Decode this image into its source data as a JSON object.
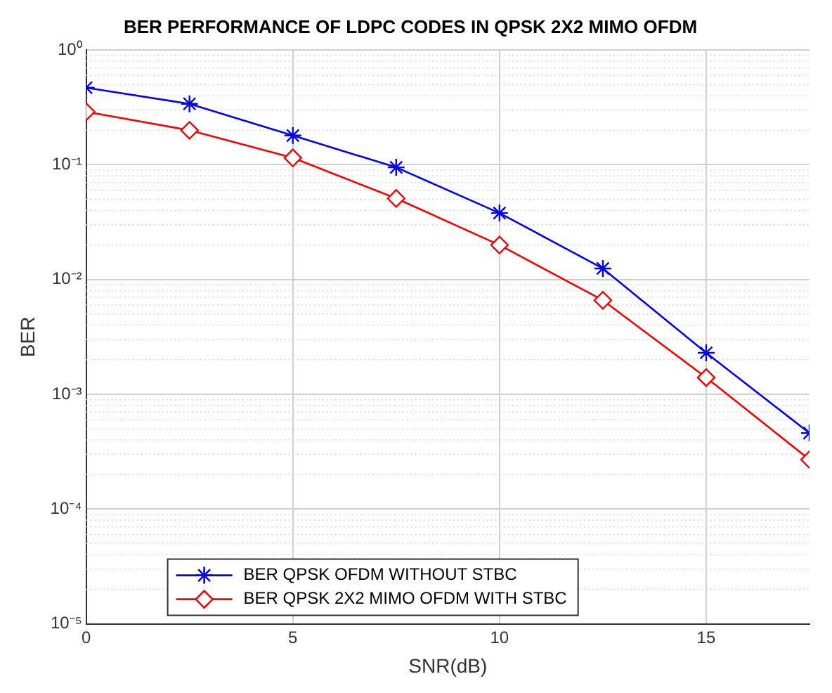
{
  "chart_data": {
    "type": "line",
    "title": "BER PERFORMANCE OF LDPC CODES IN QPSK 2X2 MIMO OFDM",
    "xlabel": "SNR(dB)",
    "ylabel": "BER",
    "x": [
      0,
      2.5,
      5,
      7.5,
      10,
      12.5,
      15,
      17.5
    ],
    "series": [
      {
        "name": "BER QPSK OFDM WITHOUT STBC",
        "color": "#0000ff",
        "marker": "cross",
        "values": [
          0.47,
          0.34,
          0.18,
          0.095,
          0.038,
          0.0125,
          0.0023,
          0.00046
        ]
      },
      {
        "name": "BER QPSK 2X2 MIMO OFDM WITH STBC",
        "color": "#ff0000",
        "marker": "diamond",
        "values": [
          0.29,
          0.2,
          0.115,
          0.051,
          0.02,
          0.0066,
          0.0014,
          0.00027
        ]
      }
    ],
    "log": "y",
    "xlim": [
      0,
      17.5
    ],
    "xticks": [
      0,
      5,
      10,
      15
    ],
    "ylim": [
      1e-05,
      1
    ],
    "yticks": [
      {
        "value": 1e-05,
        "label": "10⁻⁵"
      },
      {
        "value": 0.0001,
        "label": "10⁻⁴"
      },
      {
        "value": 0.001,
        "label": "10⁻³"
      },
      {
        "value": 0.01,
        "label": "10⁻²"
      },
      {
        "value": 0.1,
        "label": "10⁻¹"
      },
      {
        "value": 1,
        "label": "10⁰"
      }
    ],
    "grid": true,
    "legend": "bottom left",
    "line_style": "solid"
  }
}
